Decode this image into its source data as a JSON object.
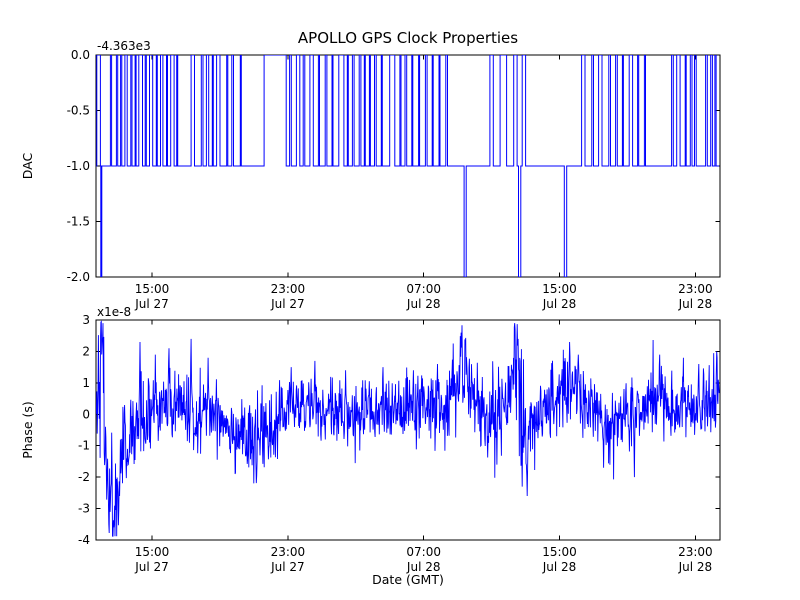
{
  "figure": {
    "title": "APOLLO GPS Clock Properties",
    "background_color": "#ffffff",
    "line_color": "#0000ff",
    "axis_color": "#000000"
  },
  "xticks": [
    {
      "hour": 15,
      "time": "15:00",
      "date": "Jul 27"
    },
    {
      "hour": 23,
      "time": "23:00",
      "date": "Jul 27"
    },
    {
      "hour": 31,
      "time": "07:00",
      "date": "Jul 28"
    },
    {
      "hour": 39,
      "time": "15:00",
      "date": "Jul 28"
    },
    {
      "hour": 47,
      "time": "23:00",
      "date": "Jul 28"
    }
  ],
  "dac_plot": {
    "ylabel": "DAC",
    "y_offset_label": "-4.363e3",
    "ytick_values": [
      0.0,
      -0.5,
      -1.0,
      -1.5,
      -2.0
    ],
    "ytick_labels": [
      "0.0",
      "-0.5",
      "-1.0",
      "-1.5",
      "-2.0"
    ],
    "ylim": [
      -2.0,
      0.0
    ]
  },
  "phase_plot": {
    "ylabel": "Phase (s)",
    "xlabel": "Date (GMT)",
    "y_multiplier_label": "x1e-8",
    "ytick_values": [
      3,
      2,
      1,
      0,
      -1,
      -2,
      -3,
      -4
    ],
    "ytick_labels": [
      "3",
      "2",
      "1",
      "0",
      "-1",
      "-2",
      "-3",
      "-4"
    ],
    "ylim": [
      -4,
      3
    ]
  },
  "chart_data": [
    {
      "type": "line",
      "subtype": "step",
      "name": "DAC",
      "ylabel": "DAC",
      "y_offset": -4363,
      "ylim": [
        -2.0,
        0.0
      ],
      "xlim": [
        11.7,
        48.45
      ],
      "x_unit": "hours relative to Jul 27 00:00 GMT",
      "xtick_hours": [
        15,
        23,
        31,
        39,
        47
      ],
      "baseline_value": -1.0,
      "high_value": 0.0,
      "dip_value": -2.0,
      "high_intervals": [
        [
          11.75,
          11.96
        ],
        [
          12.55,
          12.62
        ],
        [
          12.9,
          12.98
        ],
        [
          13.15,
          13.22
        ],
        [
          13.4,
          13.54
        ],
        [
          13.75,
          13.82
        ],
        [
          14.0,
          14.06
        ],
        [
          14.22,
          14.44
        ],
        [
          14.6,
          14.66
        ],
        [
          14.85,
          15.04
        ],
        [
          15.25,
          15.31
        ],
        [
          15.5,
          15.64
        ],
        [
          15.85,
          15.91
        ],
        [
          16.1,
          16.3
        ],
        [
          16.45,
          16.51
        ],
        [
          17.3,
          17.5
        ],
        [
          17.9,
          18.0
        ],
        [
          18.2,
          18.34
        ],
        [
          18.55,
          18.61
        ],
        [
          18.8,
          19.0
        ],
        [
          19.4,
          19.46
        ],
        [
          19.7,
          19.8
        ],
        [
          20.2,
          20.26
        ],
        [
          21.6,
          22.9
        ],
        [
          23.1,
          23.2
        ],
        [
          23.5,
          23.7
        ],
        [
          23.9,
          24.0
        ],
        [
          24.3,
          24.5
        ],
        [
          24.8,
          24.86
        ],
        [
          25.2,
          25.3
        ],
        [
          25.6,
          25.66
        ],
        [
          26.0,
          26.3
        ],
        [
          26.5,
          26.56
        ],
        [
          26.8,
          26.9
        ],
        [
          27.2,
          27.3
        ],
        [
          27.5,
          27.56
        ],
        [
          27.8,
          27.86
        ],
        [
          28.1,
          28.2
        ],
        [
          28.5,
          28.56
        ],
        [
          29.0,
          29.3
        ],
        [
          29.6,
          29.66
        ],
        [
          29.9,
          30.0
        ],
        [
          30.3,
          30.36
        ],
        [
          30.7,
          30.76
        ],
        [
          31.1,
          31.2
        ],
        [
          31.5,
          31.56
        ],
        [
          31.9,
          31.96
        ],
        [
          32.3,
          32.4
        ],
        [
          34.9,
          35.1
        ],
        [
          35.5,
          35.88
        ],
        [
          36.3,
          36.5
        ],
        [
          36.8,
          37.0
        ],
        [
          40.3,
          40.5
        ],
        [
          40.9,
          41.0
        ],
        [
          41.3,
          41.5
        ],
        [
          41.9,
          42.0
        ],
        [
          42.3,
          42.4
        ],
        [
          42.7,
          42.76
        ],
        [
          43.1,
          43.3
        ],
        [
          43.6,
          43.66
        ],
        [
          44.0,
          44.06
        ],
        [
          45.6,
          45.7
        ],
        [
          45.9,
          46.1
        ],
        [
          46.4,
          46.46
        ],
        [
          46.7,
          46.8
        ],
        [
          46.95,
          47.05
        ],
        [
          47.6,
          47.7
        ],
        [
          47.9,
          48.0
        ],
        [
          48.15,
          48.22
        ]
      ],
      "dip_intervals": [
        [
          11.98,
          12.04
        ],
        [
          33.38,
          33.5
        ],
        [
          36.58,
          36.72
        ],
        [
          39.28,
          39.42
        ]
      ]
    },
    {
      "type": "line",
      "name": "Phase",
      "ylabel": "Phase (s)",
      "xlabel": "Date (GMT)",
      "y_scale": 1e-08,
      "ylim": [
        -4,
        3
      ],
      "xlim": [
        11.7,
        48.45
      ],
      "x_unit": "hours relative to Jul 27 00:00 GMT",
      "xtick_hours": [
        15,
        23,
        31,
        39,
        47
      ],
      "noise": {
        "seed": 42,
        "n": 1500,
        "clamp": [
          -3.88,
          2.95
        ]
      },
      "mean_keypoints": [
        [
          11.7,
          0.8
        ],
        [
          12.0,
          2.0
        ],
        [
          12.2,
          -0.5
        ],
        [
          12.5,
          -2.6
        ],
        [
          12.8,
          -3.0
        ],
        [
          13.2,
          -1.4
        ],
        [
          13.8,
          -0.6
        ],
        [
          14.5,
          -0.2
        ],
        [
          15.5,
          0.1
        ],
        [
          16.5,
          0.3
        ],
        [
          17.5,
          0.0
        ],
        [
          18.5,
          0.1
        ],
        [
          19.5,
          -0.2
        ],
        [
          20.5,
          -0.7
        ],
        [
          21.2,
          -0.9
        ],
        [
          22.0,
          -0.5
        ],
        [
          23.0,
          0.2
        ],
        [
          24.0,
          0.3
        ],
        [
          25.0,
          0.0
        ],
        [
          26.0,
          0.1
        ],
        [
          27.0,
          -0.1
        ],
        [
          28.0,
          0.0
        ],
        [
          29.0,
          0.1
        ],
        [
          30.0,
          0.0
        ],
        [
          31.0,
          0.2
        ],
        [
          32.0,
          0.2
        ],
        [
          32.8,
          0.6
        ],
        [
          33.3,
          1.6
        ],
        [
          33.6,
          1.0
        ],
        [
          34.2,
          0.2
        ],
        [
          35.0,
          -0.2
        ],
        [
          35.8,
          0.2
        ],
        [
          36.3,
          1.2
        ],
        [
          36.6,
          1.0
        ],
        [
          37.0,
          -0.6
        ],
        [
          37.5,
          -0.2
        ],
        [
          38.2,
          0.2
        ],
        [
          39.0,
          0.6
        ],
        [
          39.8,
          1.0
        ],
        [
          40.3,
          0.6
        ],
        [
          41.0,
          0.1
        ],
        [
          42.0,
          -0.4
        ],
        [
          43.0,
          -0.1
        ],
        [
          44.0,
          0.2
        ],
        [
          44.8,
          0.6
        ],
        [
          45.5,
          0.3
        ],
        [
          46.2,
          0.2
        ],
        [
          47.0,
          0.3
        ],
        [
          47.8,
          0.2
        ],
        [
          48.4,
          0.7
        ]
      ],
      "sigma_keypoints": [
        [
          11.7,
          0.9
        ],
        [
          12.5,
          1.1
        ],
        [
          13.5,
          0.8
        ],
        [
          15,
          0.6
        ],
        [
          18,
          0.55
        ],
        [
          21,
          0.6
        ],
        [
          24,
          0.5
        ],
        [
          27,
          0.5
        ],
        [
          30,
          0.55
        ],
        [
          33,
          0.7
        ],
        [
          34.5,
          0.6
        ],
        [
          36.5,
          0.9
        ],
        [
          38,
          0.6
        ],
        [
          40,
          0.6
        ],
        [
          42,
          0.55
        ],
        [
          44,
          0.55
        ],
        [
          46,
          0.6
        ],
        [
          48.4,
          0.65
        ]
      ],
      "spikes": [
        {
          "x": 12.1,
          "y": 2.9
        },
        {
          "x": 12.45,
          "y": -3.5
        },
        {
          "x": 12.75,
          "y": -3.6
        },
        {
          "x": 13.1,
          "y": -2.6
        },
        {
          "x": 14.3,
          "y": 2.3
        },
        {
          "x": 15.2,
          "y": 1.9
        },
        {
          "x": 16.0,
          "y": 2.1
        },
        {
          "x": 17.3,
          "y": 2.4
        },
        {
          "x": 18.3,
          "y": 1.8
        },
        {
          "x": 19.9,
          "y": -1.9
        },
        {
          "x": 21.0,
          "y": -2.2
        },
        {
          "x": 23.2,
          "y": 1.5
        },
        {
          "x": 24.6,
          "y": 1.7
        },
        {
          "x": 26.4,
          "y": 1.4
        },
        {
          "x": 28.6,
          "y": 1.5
        },
        {
          "x": 30.4,
          "y": 1.4
        },
        {
          "x": 31.8,
          "y": 1.6
        },
        {
          "x": 33.2,
          "y": 2.6
        },
        {
          "x": 33.45,
          "y": 2.2
        },
        {
          "x": 35.3,
          "y": -1.6
        },
        {
          "x": 36.35,
          "y": 2.9
        },
        {
          "x": 36.55,
          "y": 2.4
        },
        {
          "x": 36.8,
          "y": -2.3
        },
        {
          "x": 37.1,
          "y": -2.6
        },
        {
          "x": 39.6,
          "y": 2.3
        },
        {
          "x": 40.1,
          "y": 1.9
        },
        {
          "x": 41.6,
          "y": -1.7
        },
        {
          "x": 43.4,
          "y": -2.0
        },
        {
          "x": 44.9,
          "y": 1.9
        },
        {
          "x": 46.3,
          "y": 1.8
        },
        {
          "x": 47.2,
          "y": 1.6
        },
        {
          "x": 48.25,
          "y": 2.0
        }
      ]
    }
  ]
}
